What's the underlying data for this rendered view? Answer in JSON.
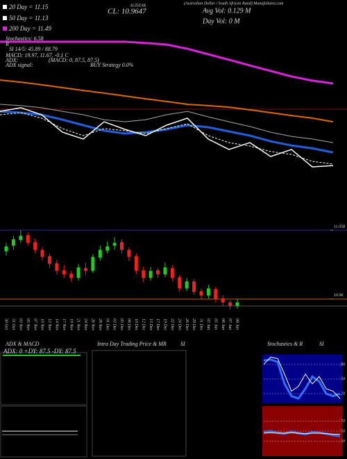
{
  "chart_data": [
    {
      "type": "line",
      "annotations": [
        "AUDZAR",
        "(Australian Dollar / South African Rand) MunafaSutra.com",
        "20 Day = 11.15",
        "50 Day = 11.13",
        "200 Day = 11.49",
        "Stochastics: 6.58",
        "R",
        "SI 14/5: 45.89 / 88.79",
        "MACD: 19.97, 11.67, -0.1 C",
        "ADX:",
        "(MACD: 0, 87.5, 87.5)",
        "ADX signal:",
        "BUY Strategy 0.0%",
        "CL: 10.9647",
        "Avg Vol: 0.129 M",
        "Day Vol: 0 M"
      ],
      "ylim": [
        10.6,
        11.7
      ],
      "series": [
        {
          "color": "#e020e0",
          "width": 3,
          "values": [
            11.48,
            11.48,
            11.48,
            11.48,
            11.48,
            11.48,
            11.48,
            11.473,
            11.465,
            11.443,
            11.414,
            11.385,
            11.355,
            11.326,
            11.297,
            11.275,
            11.26
          ]
        },
        {
          "color": "#e06a00",
          "width": 2,
          "values": [
            11.278,
            11.267,
            11.253,
            11.238,
            11.223,
            11.209,
            11.194,
            11.179,
            11.165,
            11.15,
            11.143,
            11.135,
            11.121,
            11.106,
            11.091,
            11.077,
            11.058
          ]
        },
        {
          "color": "#aaaaaa",
          "width": 1,
          "values": [
            11.15,
            11.143,
            11.132,
            11.113,
            11.095,
            11.069,
            11.058,
            11.069,
            11.095,
            11.113,
            11.084,
            11.058,
            11.033,
            11.003,
            10.981,
            10.967,
            10.948
          ]
        },
        {
          "color": "#2060e0",
          "width": 3,
          "values": [
            11.113,
            11.106,
            11.095,
            11.069,
            11.04,
            11.011,
            10.996,
            11.003,
            11.018,
            11.04,
            11.029,
            11.007,
            10.985,
            10.955,
            10.933,
            10.918,
            10.896
          ]
        },
        {
          "color": "#ffffff",
          "width": 1.5,
          "values": [
            11.113,
            11.132,
            11.095,
            11.003,
            10.967,
            11.058,
            11.018,
            10.985,
            11.04,
            11.077,
            10.967,
            10.912,
            10.948,
            10.875,
            10.912,
            10.82,
            10.827
          ]
        },
        {
          "color": "#ffffff",
          "width": 1,
          "dashed": true,
          "values": [
            11.095,
            11.106,
            11.077,
            11.022,
            10.985,
            11.022,
            11.011,
            10.996,
            11.022,
            11.047,
            10.985,
            10.948,
            10.93,
            10.901,
            10.886,
            10.849,
            10.835
          ]
        }
      ]
    },
    {
      "type": "candlestick",
      "categories": [
        "30 Oct",
        "31 Oct",
        "03 Nov",
        "05 Nov",
        "07 Nov",
        "10 Nov",
        "12 Nov",
        "14 Nov",
        "17 Nov",
        "19 Nov",
        "21 Nov",
        "24 Nov",
        "26 Nov",
        "28 Nov",
        "01 Dec",
        "03 Dec",
        "05 Dec",
        "08 Dec",
        "10 Dec",
        "12 Dec",
        "15 Dec",
        "17 Dec",
        "19 Dec",
        "22 Dec",
        "24 Dec",
        "26 Dec",
        "29 Dec",
        "31 Dec",
        "02 Jan",
        "05 Jan",
        "06 Jan",
        "07 Jan",
        "08 Jan"
      ],
      "open": [
        11.028,
        11.036,
        11.044,
        11.051,
        11.041,
        11.03,
        11.021,
        11.011,
        11.001,
        10.996,
        10.99,
        11.004,
        11.0,
        11.019,
        11.029,
        11.036,
        11.041,
        11.03,
        11.021,
        11.001,
        10.99,
        11.001,
        10.995,
        11.004,
        10.991,
        10.975,
        10.985,
        10.971,
        10.965,
        10.974,
        10.961,
        10.955,
        10.95
      ],
      "high": [
        11.04,
        11.05,
        11.058,
        11.055,
        11.046,
        11.034,
        11.025,
        11.016,
        11.008,
        11.0,
        11.01,
        11.012,
        11.024,
        11.036,
        11.042,
        11.048,
        11.045,
        11.034,
        11.025,
        11.006,
        11.006,
        11.004,
        11.012,
        11.008,
        10.994,
        10.99,
        10.988,
        10.975,
        10.98,
        10.977,
        10.965,
        10.958,
        10.96
      ],
      "low": [
        11.022,
        11.03,
        11.04,
        11.036,
        11.025,
        11.015,
        11.004,
        10.995,
        10.99,
        10.985,
        10.986,
        10.994,
        10.997,
        11.015,
        11.025,
        11.03,
        11.025,
        11.014,
        10.995,
        10.984,
        10.986,
        10.99,
        10.991,
        10.985,
        10.97,
        10.971,
        10.966,
        10.96,
        10.961,
        10.955,
        10.95,
        10.945,
        10.946
      ],
      "close": [
        11.035,
        11.045,
        11.05,
        11.04,
        11.03,
        11.02,
        11.01,
        11.0,
        10.995,
        10.99,
        11.005,
        11.0,
        11.02,
        11.03,
        11.035,
        11.04,
        11.03,
        11.02,
        11.0,
        10.99,
        11.0,
        10.995,
        11.005,
        10.99,
        10.975,
        10.985,
        10.97,
        10.965,
        10.975,
        10.96,
        10.955,
        10.95,
        10.955
      ],
      "up_color": "#22cc22",
      "down_color": "#ee2222",
      "ylim": [
        10.94,
        11.069
      ],
      "yticks": [
        11.058,
        10.96
      ]
    },
    {
      "type": "line",
      "annotations": [
        "Stochastics & R",
        "SI"
      ],
      "ylim": [
        0,
        100
      ],
      "yticks": [
        80,
        50,
        20
      ],
      "background": "#000088",
      "series": [
        {
          "color": "#3070ff",
          "width": 3,
          "values": [
            88,
            90,
            85,
            40,
            15,
            10,
            30,
            55,
            45,
            20,
            15,
            20
          ]
        },
        {
          "color": "#ffffff",
          "width": 1,
          "values": [
            80,
            95,
            92,
            60,
            25,
            35,
            60,
            40,
            55,
            30,
            25,
            10
          ]
        }
      ]
    },
    {
      "type": "line",
      "ylim": [
        0,
        100
      ],
      "yticks": [
        70,
        50,
        30
      ],
      "background": "#8b0000",
      "series": [
        {
          "color": "#3070ff",
          "width": 3,
          "values": [
            48,
            50,
            47,
            45,
            49,
            46,
            44,
            48,
            47,
            45,
            42,
            40
          ]
        },
        {
          "color": "#ffffff",
          "width": 1,
          "values": [
            46,
            47,
            46,
            46,
            47,
            46,
            45,
            46,
            46,
            45,
            44,
            44
          ]
        }
      ]
    }
  ],
  "panels": {
    "adx": {
      "title": "ADX & MACD",
      "label": "ADX: 0  +DY: 87.5  -DY: 87.5"
    },
    "intraday": {
      "title": "Intra Day Trading Price & MR",
      "suffix": "SI"
    }
  }
}
